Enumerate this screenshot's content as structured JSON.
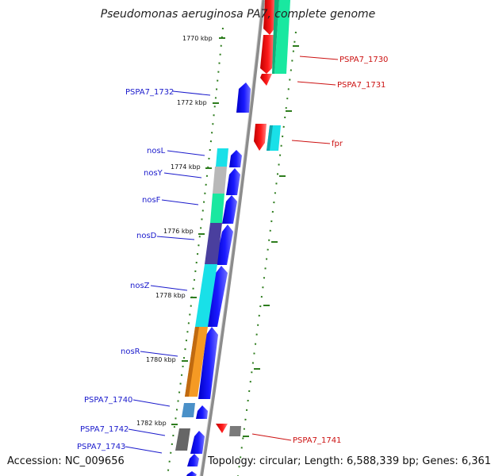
{
  "title": "Pseudomonas aeruginosa PA7, complete genome",
  "footer": {
    "accession": "Accession: NC_009656",
    "summary": "Topology: circular; Length: 6,588,339 bp; Genes: 6,361"
  },
  "colors": {
    "backbone": "#8c8c8c",
    "tick": "#2e7d1e",
    "left_label": "#1a1acc",
    "right_label": "#cc1111"
  },
  "position_labels": [
    "1770 kbp",
    "1772 kbp",
    "1774 kbp",
    "1776 kbp",
    "1778 kbp",
    "1780 kbp",
    "1782 kbp"
  ],
  "genes_left": [
    {
      "id": "g1732",
      "name": "PSPA7_1732"
    },
    {
      "id": "gnosL",
      "name": "nosL"
    },
    {
      "id": "gnosY",
      "name": "nosY"
    },
    {
      "id": "gnosF",
      "name": "nosF"
    },
    {
      "id": "gnosD",
      "name": "nosD"
    },
    {
      "id": "gnosZ",
      "name": "nosZ"
    },
    {
      "id": "gnosR",
      "name": "nosR"
    },
    {
      "id": "g1740",
      "name": "PSPA7_1740"
    },
    {
      "id": "g1742",
      "name": "PSPA7_1742"
    },
    {
      "id": "g1743",
      "name": "PSPA7_1743"
    }
  ],
  "genes_right": [
    {
      "id": "g1730",
      "name": "PSPA7_1730"
    },
    {
      "id": "g1731",
      "name": "PSPA7_1731"
    },
    {
      "id": "gfpr",
      "name": "fpr"
    },
    {
      "id": "g1741",
      "name": "PSPA7_1741"
    }
  ]
}
